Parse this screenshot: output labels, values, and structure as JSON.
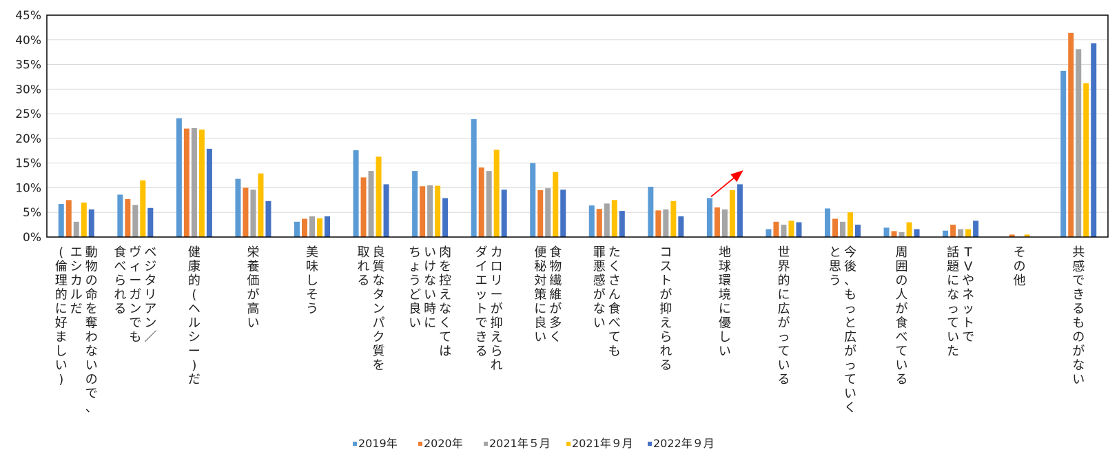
{
  "chart_data": {
    "type": "bar",
    "ylim": [
      0,
      45
    ],
    "yticks": [
      "0%",
      "5%",
      "10%",
      "15%",
      "20%",
      "25%",
      "30%",
      "35%",
      "40%",
      "45%"
    ],
    "ytick_values": [
      0,
      5,
      10,
      15,
      20,
      25,
      30,
      35,
      40,
      45
    ],
    "grid": true,
    "legend_position": "bottom",
    "categories": [
      [
        "動物の命を奪わないので、",
        "エシカルだ",
        "(倫理的に好ましい)"
      ],
      [
        "ベジタリアン／",
        "ヴィーガンでも",
        "食べられる"
      ],
      [
        "健康的(ヘルシー)だ"
      ],
      [
        "栄養価が高い"
      ],
      [
        "美味しそう"
      ],
      [
        "良質なタンパク質を",
        "取れる"
      ],
      [
        "肉を控えなくては",
        "いけない時に",
        "ちょうど良い"
      ],
      [
        "カロリーが抑えられ",
        "ダイエットできる"
      ],
      [
        "食物繊維が多く",
        "便秘対策に良い"
      ],
      [
        "たくさん食べても",
        "罪悪感がない"
      ],
      [
        "コストが抑えられる"
      ],
      [
        "地球環境に優しい"
      ],
      [
        "世界的に広がっている"
      ],
      [
        "今後、もっと広がっていく",
        "と思う"
      ],
      [
        "周囲の人が食べている"
      ],
      [
        "TVやネットで",
        "話題になっていた"
      ],
      [
        "その他"
      ],
      [
        "共感できるものがない"
      ]
    ],
    "series": [
      {
        "name": "2019年",
        "color": "#5B9BD5",
        "values": [
          6.7,
          8.6,
          24.1,
          11.8,
          3.1,
          17.6,
          13.4,
          23.9,
          15.0,
          6.4,
          10.2,
          7.9,
          1.6,
          5.8,
          1.9,
          1.3,
          0.0,
          33.7
        ]
      },
      {
        "name": "2020年",
        "color": "#ED7D31",
        "values": [
          7.5,
          7.7,
          22.0,
          10.0,
          3.7,
          12.1,
          10.3,
          14.1,
          9.5,
          5.7,
          5.4,
          6.0,
          3.1,
          3.7,
          1.2,
          2.5,
          0.5,
          41.4
        ]
      },
      {
        "name": "2021年５月",
        "color": "#A5A5A5",
        "values": [
          3.1,
          6.5,
          22.1,
          9.6,
          4.2,
          13.4,
          10.5,
          13.4,
          9.9,
          6.8,
          5.6,
          5.6,
          2.5,
          3.1,
          1.0,
          1.6,
          0.0,
          38.1
        ]
      },
      {
        "name": "2021年９月",
        "color": "#FFC000",
        "values": [
          7.0,
          11.5,
          21.8,
          12.9,
          3.8,
          16.3,
          10.4,
          17.7,
          13.2,
          7.5,
          7.3,
          9.5,
          3.3,
          5.0,
          3.0,
          1.6,
          0.5,
          31.2
        ]
      },
      {
        "name": "2022年９月",
        "color": "#4472C4",
        "values": [
          5.6,
          5.9,
          17.9,
          7.3,
          4.2,
          10.7,
          7.9,
          9.6,
          9.6,
          5.3,
          4.2,
          10.7,
          3.0,
          2.5,
          1.6,
          3.3,
          0.0,
          39.3
        ]
      }
    ],
    "annotation": {
      "type": "red-arrow",
      "category_index": 11,
      "from_series": 0,
      "to_series": 4
    }
  }
}
